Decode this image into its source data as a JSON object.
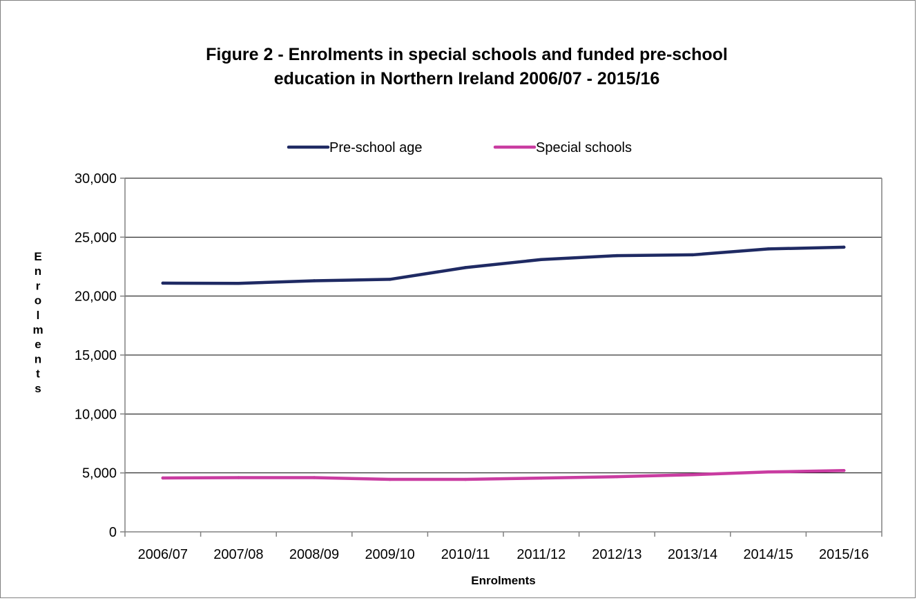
{
  "chart_data": {
    "type": "line",
    "title_lines": [
      "Figure 2 - Enrolments in special schools and funded pre-school",
      "education in Northern Ireland 2006/07 - 2015/16"
    ],
    "xlabel": "Enrolments",
    "ylabel": "Enrolments",
    "categories": [
      "2006/07",
      "2007/08",
      "2008/09",
      "2009/10",
      "2010/11",
      "2011/12",
      "2012/13",
      "2013/14",
      "2014/15",
      "2015/16"
    ],
    "ylim": [
      0,
      30000
    ],
    "yticks": [
      0,
      5000,
      10000,
      15000,
      20000,
      25000,
      30000
    ],
    "ytick_labels": [
      "0",
      "5,000",
      "10,000",
      "15,000",
      "20,000",
      "25,000",
      "30,000"
    ],
    "grid": true,
    "legend_position": "top",
    "series": [
      {
        "name": "Pre-school age",
        "color": "#1f2a63",
        "values": [
          21100,
          21080,
          21300,
          21420,
          22420,
          23100,
          23430,
          23500,
          24000,
          24150
        ]
      },
      {
        "name": "Special schools",
        "color": "#c93ca1",
        "values": [
          4570,
          4600,
          4600,
          4450,
          4450,
          4560,
          4680,
          4850,
          5080,
          5200
        ]
      }
    ]
  }
}
